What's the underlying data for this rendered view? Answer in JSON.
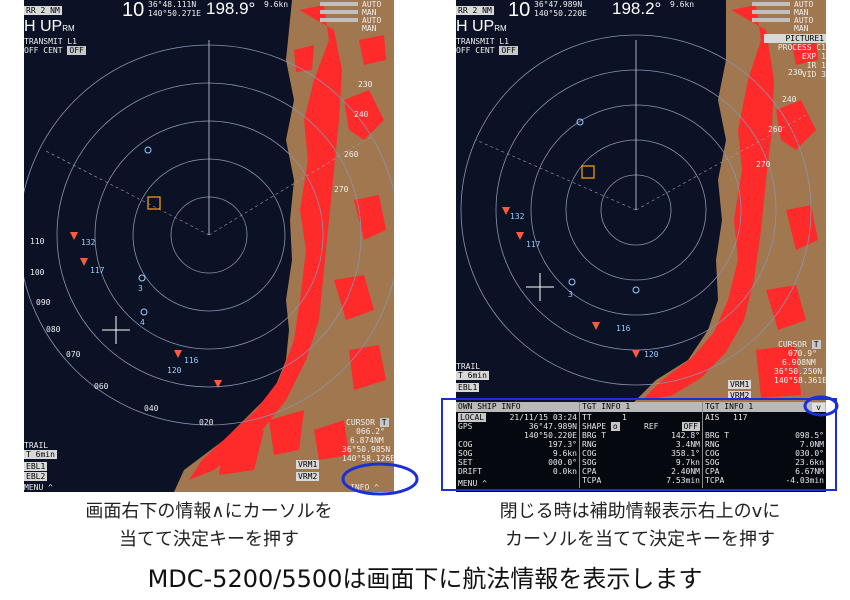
{
  "left": {
    "header": {
      "range_label": "RR",
      "range_value": "2",
      "range_unit": "NM",
      "mode": "H UP",
      "mode_suffix": "RM",
      "line3": "TRANSMIT L1",
      "off_label": "OFF",
      "cent_label": "CENT",
      "off2": "OFF",
      "gain": "10",
      "lat": "36°48.111N",
      "lon": "140°50.271E",
      "heading": "198.9°",
      "speed": "9.6kn",
      "auto_labels": [
        "AUTO",
        "MAN",
        "AUTO",
        "MAN"
      ]
    },
    "ring_labels": [
      "110",
      "100",
      "090",
      "080",
      "070",
      "060",
      "040",
      "020",
      "270",
      "260",
      "240",
      "230"
    ],
    "target_ids": [
      "132",
      "117",
      "3",
      "4",
      "116",
      "120"
    ],
    "cursor": {
      "title": "CURSOR",
      "value": "T",
      "brg": "066.2°",
      "rng": "6.874NM",
      "lat": "36°50.985N",
      "lon": "140°58.126E"
    },
    "trail": {
      "label": "TRAIL",
      "value": "T 6min"
    },
    "ebl1": "EBL1",
    "ebl2": "EBL2",
    "vrm1": "VRM1",
    "vrm2": "VRM2",
    "menu": "MENU",
    "menu_caret": "^",
    "info": "INFO",
    "info_caret": "^"
  },
  "right": {
    "header": {
      "range_label": "RR",
      "range_value": "2",
      "range_unit": "NM",
      "mode": "H UP",
      "mode_suffix": "RM",
      "line3": "TRANSMIT L1",
      "off_label": "OFF",
      "cent_label": "CENT",
      "off2": "OFF",
      "gain": "10",
      "lat": "36°47.989N",
      "lon": "140°50.220E",
      "heading": "198.2°",
      "speed": "9.6kn",
      "auto_labels": [
        "AUTO",
        "MAN",
        "AUTO",
        "MAN"
      ],
      "right_labels": [
        "PICTURE1",
        "PROCESS C1",
        "EXP 1",
        "IR 1",
        "VID 3"
      ]
    },
    "ring_labels": [
      "270",
      "260",
      "240",
      "230"
    ],
    "target_ids": [
      "132",
      "117",
      "3",
      "116",
      "120"
    ],
    "cursor": {
      "title": "CURSOR",
      "value": "T",
      "brg": "070.9°",
      "rng": "6.908NM",
      "lat": "36°50.250N",
      "lon": "140°58.361E"
    },
    "trail": {
      "label": "TRAIL",
      "value": "T 6min"
    },
    "ebl1": "EBL1",
    "vrm1": "VRM1",
    "vrm2": "VRM2",
    "panel": {
      "own": {
        "title": "OWN SHIP INFO",
        "local_label": "LOCAL",
        "local_value": "21/11/15 03:24",
        "gps_label": "GPS",
        "gps_lat": "36°47.989N",
        "gps_lon": "140°50.220E",
        "rows": [
          {
            "label": "COG",
            "value": "197.3°"
          },
          {
            "label": "SOG",
            "value": "9.6kn"
          },
          {
            "label": "SET",
            "value": "000.0°"
          },
          {
            "label": "DRIFT",
            "value": "0.0kn"
          }
        ]
      },
      "tgt1": {
        "title": "TGT INFO 1",
        "tt_label": "TT",
        "tt_value": "1",
        "shape_label": "SHAPE",
        "ref_label": "REF",
        "ref_value": "OFF",
        "rows": [
          {
            "label": "BRG T",
            "value": "142.8°"
          },
          {
            "label": "RNG",
            "value": "3.4NM"
          },
          {
            "label": "COG",
            "value": "358.1°"
          },
          {
            "label": "SOG",
            "value": "9.7kn"
          },
          {
            "label": "CPA",
            "value": "2.40NM"
          },
          {
            "label": "TCPA",
            "value": "7.53min"
          }
        ]
      },
      "tgt2": {
        "title": "TGT INFO 1",
        "ais_label": "AIS",
        "ais_value": "117",
        "close_caret": "v",
        "rows": [
          {
            "label": "BRG T",
            "value": "098.5°"
          },
          {
            "label": "RNG",
            "value": "7.0NM"
          },
          {
            "label": "COG",
            "value": "030.0°"
          },
          {
            "label": "SOG",
            "value": "23.6kn"
          },
          {
            "label": "CPA",
            "value": "6.67NM"
          },
          {
            "label": "TCPA",
            "value": "-4.03min"
          }
        ]
      },
      "menu": "MENU",
      "menu_caret": "^"
    }
  },
  "captions": {
    "left_line1": "画面右下の情報∧にカーソルを",
    "left_line2": "当てて決定キーを押す",
    "right_line1": "閉じる時は補助情報表示右上のⅴに",
    "right_line2": "カーソルを当てて決定キーを押す",
    "bottom": "MDC-5200/5500は画面下に航法情報を表示します"
  },
  "colors": {
    "radar_bg": "#0c1226",
    "land": "#a0774e",
    "echo": "#ff2a2a",
    "highlight": "#1a2fd6"
  }
}
